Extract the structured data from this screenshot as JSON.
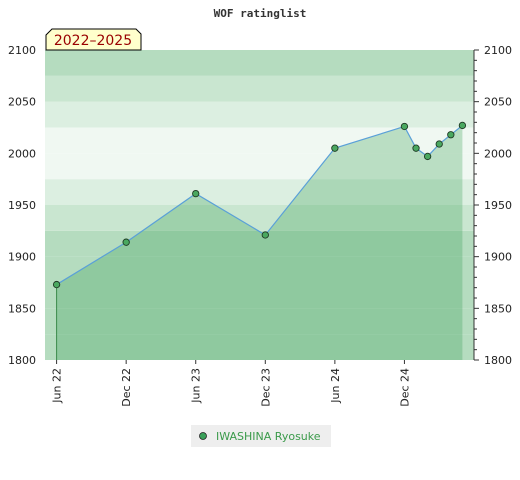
{
  "chart_data": {
    "type": "area",
    "title": "WOF ratinglist",
    "period_label": "2022–2025",
    "x_ticks": [
      "Jun 22",
      "Dec 22",
      "Jun 23",
      "Dec 23",
      "Jun 24",
      "Dec 24"
    ],
    "y_ticks": [
      "1800",
      "1850",
      "1900",
      "1950",
      "2000",
      "2050",
      "2100"
    ],
    "ylim": [
      1800,
      2100
    ],
    "xlim": [
      "2022-05",
      "2025-06"
    ],
    "series": [
      {
        "name": "IWASHINA Ryosuke",
        "color": "#2e9a4a",
        "line_color": "#5aa0d8",
        "points": [
          {
            "x": "2022-06",
            "y": 1873
          },
          {
            "x": "2022-12",
            "y": 1914
          },
          {
            "x": "2023-06",
            "y": 1961
          },
          {
            "x": "2023-12",
            "y": 1921
          },
          {
            "x": "2024-06",
            "y": 2005
          },
          {
            "x": "2024-12",
            "y": 2026
          },
          {
            "x": "2025-01",
            "y": 2005
          },
          {
            "x": "2025-02",
            "y": 1997
          },
          {
            "x": "2025-03",
            "y": 2009
          },
          {
            "x": "2025-04",
            "y": 2018
          },
          {
            "x": "2025-05",
            "y": 2027
          }
        ]
      }
    ],
    "grid": true,
    "legend_position": "bottom-center"
  }
}
